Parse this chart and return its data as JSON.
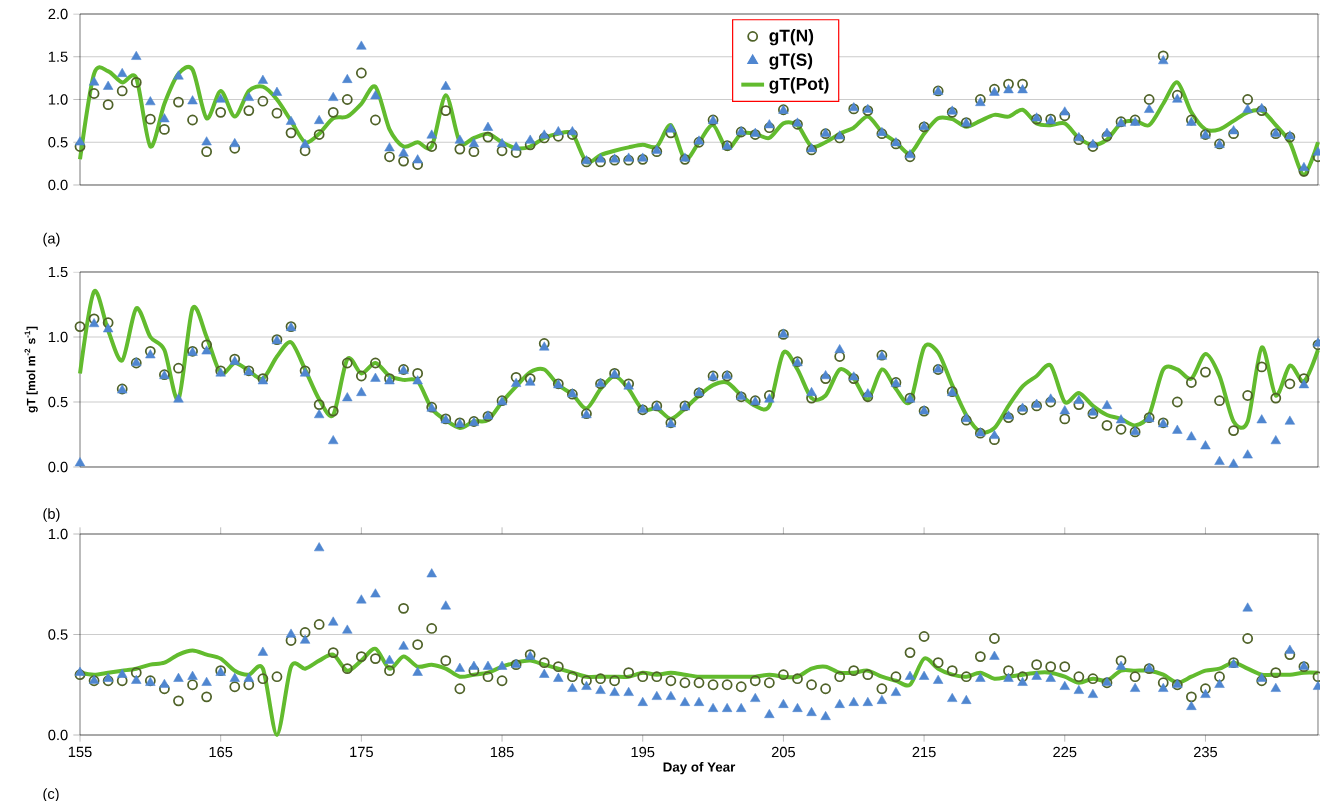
{
  "chart_data": [
    {
      "type": "scatter",
      "xlim": [
        155,
        243
      ],
      "ylim": [
        0,
        2
      ],
      "yticks": [
        {
          "value": 0,
          "label": "0.0"
        },
        {
          "value": 0.5,
          "label": "0.5"
        },
        {
          "value": 1,
          "label": "1.0"
        },
        {
          "value": 1.5,
          "label": "1.5"
        },
        {
          "value": 2,
          "label": "2.0"
        }
      ],
      "tick_labels": "y",
      "grid": "y",
      "legend": "top",
      "annotations": [
        "(a)"
      ],
      "x": [
        155,
        156,
        157,
        158,
        159,
        160,
        161,
        162,
        163,
        164,
        165,
        166,
        167,
        168,
        169,
        170,
        171,
        172,
        173,
        174,
        175,
        176,
        177,
        178,
        179,
        180,
        181,
        182,
        183,
        184,
        185,
        186,
        187,
        188,
        189,
        190,
        191,
        192,
        193,
        194,
        195,
        196,
        197,
        198,
        199,
        200,
        201,
        202,
        203,
        204,
        205,
        206,
        207,
        208,
        209,
        210,
        211,
        212,
        213,
        214,
        215,
        216,
        217,
        218,
        219,
        220,
        221,
        222,
        223,
        224,
        225,
        226,
        227,
        228,
        229,
        230,
        231,
        232,
        233,
        234,
        235,
        236,
        237,
        238,
        239,
        240,
        241,
        242,
        243
      ],
      "series": [
        {
          "name": "gT(N)",
          "marker": "circle",
          "color": "#4f6228",
          "values": [
            0.45,
            1.07,
            0.94,
            1.1,
            1.2,
            0.77,
            0.65,
            0.97,
            0.76,
            0.39,
            0.85,
            0.43,
            0.87,
            0.98,
            0.84,
            0.61,
            0.4,
            0.59,
            0.85,
            1.0,
            1.31,
            0.76,
            0.33,
            0.28,
            0.24,
            0.45,
            0.87,
            0.42,
            0.39,
            0.56,
            0.4,
            0.38,
            0.47,
            0.55,
            0.57,
            0.59,
            0.27,
            0.27,
            0.29,
            0.29,
            0.3,
            0.39,
            0.61,
            0.3,
            0.5,
            0.76,
            0.46,
            0.62,
            0.59,
            0.67,
            0.88,
            0.71,
            0.41,
            0.6,
            0.55,
            0.89,
            0.87,
            0.6,
            0.48,
            0.33,
            0.68,
            1.1,
            0.85,
            0.73,
            1.0,
            1.12,
            1.18,
            1.18,
            0.77,
            0.77,
            0.81,
            0.53,
            0.45,
            0.57,
            0.74,
            0.76,
            1.0,
            1.51,
            1.05,
            0.76,
            0.59,
            0.48,
            0.6,
            1.0,
            0.87,
            0.6,
            0.56,
            0.16,
            0.33
          ]
        },
        {
          "name": "gT(S)",
          "marker": "triangle",
          "color": "#4f86d0",
          "values": [
            0.5,
            1.2,
            1.15,
            1.3,
            1.5,
            0.97,
            0.77,
            1.27,
            0.98,
            0.5,
            1.0,
            0.48,
            1.02,
            1.22,
            1.08,
            0.74,
            0.47,
            0.75,
            1.02,
            1.23,
            1.62,
            1.04,
            0.43,
            0.37,
            0.29,
            0.58,
            1.15,
            0.52,
            0.48,
            0.67,
            0.48,
            0.44,
            0.52,
            0.58,
            0.62,
            0.62,
            0.28,
            0.3,
            0.3,
            0.31,
            0.31,
            0.4,
            0.65,
            0.31,
            0.51,
            0.75,
            0.45,
            0.62,
            0.6,
            0.7,
            0.87,
            0.72,
            0.42,
            0.6,
            0.57,
            0.9,
            0.88,
            0.61,
            0.49,
            0.35,
            0.68,
            1.09,
            0.86,
            0.72,
            0.96,
            1.08,
            1.11,
            1.11,
            0.78,
            0.75,
            0.85,
            0.55,
            0.47,
            0.6,
            0.72,
            0.73,
            0.88,
            1.45,
            1.0,
            0.73,
            0.58,
            0.47,
            0.63,
            0.88,
            0.89,
            0.6,
            0.57,
            0.2,
            0.38
          ]
        },
        {
          "name": "gT(Pot)",
          "type": "line",
          "marker": "none",
          "color": "#62bb2e",
          "values": [
            0.3,
            1.3,
            1.33,
            1.2,
            1.25,
            0.45,
            0.95,
            1.3,
            1.35,
            0.78,
            1.1,
            0.8,
            1.1,
            1.15,
            1.0,
            0.75,
            0.5,
            0.6,
            0.78,
            0.8,
            0.95,
            1.15,
            0.65,
            0.45,
            0.5,
            0.45,
            1.05,
            0.5,
            0.55,
            0.6,
            0.5,
            0.43,
            0.45,
            0.55,
            0.6,
            0.6,
            0.27,
            0.35,
            0.4,
            0.44,
            0.47,
            0.45,
            0.7,
            0.3,
            0.5,
            0.7,
            0.42,
            0.6,
            0.6,
            0.55,
            0.72,
            0.7,
            0.45,
            0.5,
            0.6,
            0.67,
            0.8,
            0.62,
            0.5,
            0.37,
            0.6,
            0.78,
            0.77,
            0.68,
            0.75,
            0.82,
            0.8,
            0.88,
            0.72,
            0.7,
            0.72,
            0.55,
            0.47,
            0.53,
            0.72,
            0.75,
            0.7,
            0.95,
            1.2,
            0.85,
            0.65,
            0.65,
            0.75,
            0.85,
            0.87,
            0.7,
            0.5,
            0.12,
            0.5
          ]
        }
      ]
    },
    {
      "type": "scatter",
      "xlim": [
        155,
        243
      ],
      "ylim": [
        0,
        1.5
      ],
      "yticks": [
        {
          "value": 0,
          "label": "0.0"
        },
        {
          "value": 0.5,
          "label": "0.5"
        },
        {
          "value": 1,
          "label": "1.0"
        },
        {
          "value": 1.5,
          "label": "1.5"
        }
      ],
      "tick_labels": "y",
      "grid": "y",
      "ylabel": "gT [mol m$^{-2}$ s$^{-1}$]",
      "annotations": [
        "(b)"
      ],
      "x": [
        155,
        156,
        157,
        158,
        159,
        160,
        161,
        162,
        163,
        164,
        165,
        166,
        167,
        168,
        169,
        170,
        171,
        172,
        173,
        174,
        175,
        176,
        177,
        178,
        179,
        180,
        181,
        182,
        183,
        184,
        185,
        186,
        187,
        188,
        189,
        190,
        191,
        192,
        193,
        194,
        195,
        196,
        197,
        198,
        199,
        200,
        201,
        202,
        203,
        204,
        205,
        206,
        207,
        208,
        209,
        210,
        211,
        212,
        213,
        214,
        215,
        216,
        217,
        218,
        219,
        220,
        221,
        222,
        223,
        224,
        225,
        226,
        227,
        228,
        229,
        230,
        231,
        232,
        233,
        234,
        235,
        236,
        237,
        238,
        239,
        240,
        241,
        242,
        243
      ],
      "series": [
        {
          "marker": "circle",
          "color": "#4f6228",
          "values": [
            1.08,
            1.14,
            1.11,
            0.6,
            0.8,
            0.89,
            0.71,
            0.76,
            0.89,
            0.94,
            0.74,
            0.83,
            0.74,
            0.68,
            0.98,
            1.08,
            0.74,
            0.48,
            0.43,
            0.8,
            0.7,
            0.8,
            0.68,
            0.75,
            0.72,
            0.46,
            0.37,
            0.34,
            0.35,
            0.39,
            0.51,
            0.69,
            0.68,
            0.95,
            0.64,
            0.56,
            0.41,
            0.64,
            0.72,
            0.64,
            0.44,
            0.47,
            0.34,
            0.47,
            0.57,
            0.7,
            0.7,
            0.54,
            0.51,
            0.55,
            1.02,
            0.81,
            0.53,
            0.68,
            0.85,
            0.68,
            0.54,
            0.86,
            0.65,
            0.53,
            0.43,
            0.75,
            0.58,
            0.36,
            0.26,
            0.21,
            0.38,
            0.44,
            0.47,
            0.5,
            0.37,
            0.48,
            0.41,
            0.32,
            0.29,
            0.27,
            0.38,
            0.34,
            0.5,
            0.65,
            0.73,
            0.51,
            0.28,
            0.55,
            0.77,
            0.53,
            0.64,
            0.68,
            0.94
          ]
        },
        {
          "marker": "triangle",
          "color": "#4f86d0",
          "values": [
            0.03,
            1.1,
            1.06,
            0.59,
            0.8,
            0.86,
            0.7,
            0.52,
            0.88,
            0.89,
            0.72,
            0.81,
            0.73,
            0.66,
            0.97,
            1.07,
            0.72,
            0.4,
            0.2,
            0.53,
            0.57,
            0.68,
            0.66,
            0.74,
            0.66,
            0.45,
            0.36,
            0.33,
            0.34,
            0.39,
            0.5,
            0.64,
            0.65,
            0.92,
            0.63,
            0.56,
            0.4,
            0.64,
            0.71,
            0.62,
            0.44,
            0.46,
            0.33,
            0.46,
            0.57,
            0.69,
            0.7,
            0.54,
            0.5,
            0.52,
            1.02,
            0.8,
            0.57,
            0.7,
            0.9,
            0.69,
            0.56,
            0.85,
            0.64,
            0.52,
            0.43,
            0.75,
            0.57,
            0.37,
            0.26,
            0.24,
            0.39,
            0.45,
            0.48,
            0.52,
            0.43,
            0.51,
            0.42,
            0.47,
            0.36,
            0.27,
            0.37,
            0.33,
            0.28,
            0.23,
            0.16,
            0.04,
            0.02,
            0.09,
            0.36,
            0.2,
            0.35,
            0.63,
            0.95
          ]
        },
        {
          "type": "line",
          "marker": "none",
          "color": "#62bb2e",
          "values": [
            0.72,
            1.35,
            1.05,
            0.82,
            1.22,
            1.0,
            0.9,
            0.52,
            1.22,
            1.0,
            0.72,
            0.8,
            0.74,
            0.68,
            0.85,
            0.96,
            0.75,
            0.52,
            0.4,
            0.83,
            0.72,
            0.8,
            0.7,
            0.67,
            0.66,
            0.45,
            0.36,
            0.3,
            0.35,
            0.36,
            0.5,
            0.62,
            0.73,
            0.75,
            0.63,
            0.56,
            0.45,
            0.6,
            0.7,
            0.6,
            0.44,
            0.45,
            0.37,
            0.45,
            0.55,
            0.63,
            0.65,
            0.55,
            0.47,
            0.47,
            0.88,
            0.75,
            0.53,
            0.55,
            0.75,
            0.68,
            0.52,
            0.75,
            0.6,
            0.5,
            0.92,
            0.88,
            0.63,
            0.4,
            0.27,
            0.3,
            0.47,
            0.62,
            0.7,
            0.78,
            0.5,
            0.57,
            0.47,
            0.4,
            0.37,
            0.32,
            0.4,
            0.75,
            0.75,
            0.68,
            0.87,
            0.7,
            0.35,
            0.35,
            0.92,
            0.55,
            0.78,
            0.66,
            0.9
          ]
        }
      ]
    },
    {
      "type": "scatter",
      "xlim": [
        155,
        243
      ],
      "ylim": [
        0,
        1
      ],
      "xticks": [
        155,
        165,
        175,
        185,
        195,
        205,
        215,
        225,
        235
      ],
      "yticks": [
        {
          "value": 0,
          "label": "0.0"
        },
        {
          "value": 0.5,
          "label": "0.5"
        },
        {
          "value": 1,
          "label": "1.0"
        }
      ],
      "grid": "y",
      "xlabel": "Day of Year",
      "annotations": [
        "(c)"
      ],
      "x": [
        155,
        156,
        157,
        158,
        159,
        160,
        161,
        162,
        163,
        164,
        165,
        166,
        167,
        168,
        169,
        170,
        171,
        172,
        173,
        174,
        175,
        176,
        177,
        178,
        179,
        180,
        181,
        182,
        183,
        184,
        185,
        186,
        187,
        188,
        189,
        190,
        191,
        192,
        193,
        194,
        195,
        196,
        197,
        198,
        199,
        200,
        201,
        202,
        203,
        204,
        205,
        206,
        207,
        208,
        209,
        210,
        211,
        212,
        213,
        214,
        215,
        216,
        217,
        218,
        219,
        220,
        221,
        222,
        223,
        224,
        225,
        226,
        227,
        228,
        229,
        230,
        231,
        232,
        233,
        234,
        235,
        236,
        237,
        238,
        239,
        240,
        241,
        242,
        243
      ],
      "series": [
        {
          "marker": "circle",
          "color": "#4f6228",
          "values": [
            0.3,
            0.27,
            0.27,
            0.27,
            0.31,
            0.27,
            0.23,
            0.17,
            0.25,
            0.19,
            0.32,
            0.24,
            0.25,
            0.28,
            0.29,
            0.47,
            0.51,
            0.55,
            0.41,
            0.33,
            0.39,
            0.38,
            0.32,
            0.63,
            0.45,
            0.53,
            0.37,
            0.23,
            0.32,
            0.29,
            0.27,
            0.35,
            0.4,
            0.36,
            0.34,
            0.29,
            0.27,
            0.28,
            0.27,
            0.31,
            0.29,
            0.29,
            0.27,
            0.26,
            0.26,
            0.25,
            0.25,
            0.24,
            0.27,
            0.26,
            0.3,
            0.28,
            0.25,
            0.23,
            0.29,
            0.32,
            0.3,
            0.23,
            0.29,
            0.41,
            0.49,
            0.36,
            0.32,
            0.29,
            0.39,
            0.48,
            0.32,
            0.29,
            0.35,
            0.34,
            0.34,
            0.29,
            0.28,
            0.26,
            0.37,
            0.29,
            0.33,
            0.26,
            0.25,
            0.19,
            0.23,
            0.29,
            0.36,
            0.48,
            0.27,
            0.31,
            0.4,
            0.34,
            0.29
          ]
        },
        {
          "marker": "triangle",
          "color": "#4f86d0",
          "values": [
            0.31,
            0.27,
            0.28,
            0.3,
            0.27,
            0.26,
            0.25,
            0.28,
            0.29,
            0.26,
            0.31,
            0.28,
            0.28,
            0.41,
            null,
            0.5,
            0.47,
            0.93,
            0.56,
            0.52,
            0.67,
            0.7,
            0.37,
            0.44,
            0.31,
            0.8,
            0.64,
            0.33,
            0.34,
            0.34,
            0.34,
            0.35,
            0.39,
            0.3,
            0.28,
            0.23,
            0.24,
            0.22,
            0.21,
            0.21,
            0.16,
            0.19,
            0.19,
            0.16,
            0.16,
            0.13,
            0.13,
            0.13,
            0.18,
            0.1,
            0.15,
            0.13,
            0.11,
            0.09,
            0.15,
            0.16,
            0.16,
            0.17,
            0.21,
            0.29,
            0.29,
            0.27,
            0.18,
            0.17,
            0.28,
            0.39,
            0.28,
            0.26,
            0.29,
            0.28,
            0.24,
            0.22,
            0.2,
            0.26,
            0.34,
            0.23,
            0.33,
            0.23,
            0.25,
            0.14,
            0.2,
            0.25,
            0.35,
            0.63,
            0.28,
            0.23,
            0.42,
            0.34,
            0.24
          ]
        },
        {
          "type": "line",
          "marker": "none",
          "color": "#62bb2e",
          "values": [
            0.31,
            0.3,
            0.31,
            0.32,
            0.33,
            0.35,
            0.36,
            0.4,
            0.42,
            0.4,
            0.38,
            0.32,
            0.3,
            0.33,
            0.0,
            0.34,
            0.33,
            0.37,
            0.4,
            0.32,
            0.37,
            0.43,
            0.33,
            0.39,
            0.34,
            0.35,
            0.33,
            0.29,
            0.3,
            0.31,
            0.34,
            0.36,
            0.37,
            0.35,
            0.33,
            0.31,
            0.29,
            0.29,
            0.29,
            0.29,
            0.31,
            0.3,
            0.31,
            0.3,
            0.29,
            0.29,
            0.29,
            0.29,
            0.29,
            0.3,
            0.29,
            0.29,
            0.33,
            0.34,
            0.31,
            0.31,
            0.32,
            0.29,
            0.27,
            0.25,
            0.38,
            0.33,
            0.3,
            0.29,
            0.31,
            0.28,
            0.29,
            0.3,
            0.31,
            0.31,
            0.29,
            0.26,
            0.28,
            0.27,
            0.32,
            0.32,
            0.32,
            0.3,
            0.26,
            0.29,
            0.32,
            0.33,
            0.36,
            0.33,
            0.3,
            0.3,
            0.3,
            0.31,
            0.31
          ]
        }
      ]
    }
  ]
}
